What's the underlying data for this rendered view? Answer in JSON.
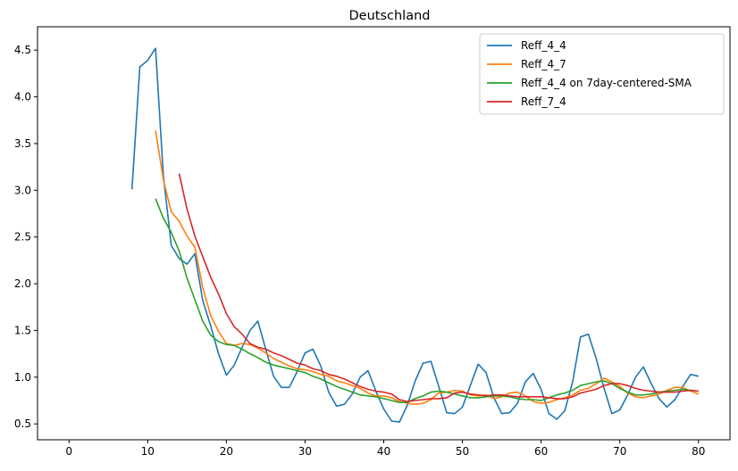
{
  "chart_data": {
    "type": "line",
    "title": "Deutschland",
    "xlabel": "",
    "ylabel": "",
    "xlim": [
      -4,
      84
    ],
    "ylim": [
      0.33,
      4.75
    ],
    "xticks": [
      0,
      10,
      20,
      30,
      40,
      50,
      60,
      70,
      80
    ],
    "yticks": [
      0.5,
      1.0,
      1.5,
      2.0,
      2.5,
      3.0,
      3.5,
      4.0,
      4.5
    ],
    "grid": false,
    "legend_position": "top-right",
    "series": [
      {
        "name": "Reff_4_4",
        "color": "#1f77b4",
        "x": [
          8,
          9,
          10,
          11,
          12,
          13,
          14,
          15,
          16,
          17,
          18,
          19,
          20,
          21,
          22,
          23,
          24,
          25,
          26,
          27,
          28,
          29,
          30,
          31,
          32,
          33,
          34,
          35,
          36,
          37,
          38,
          39,
          40,
          41,
          42,
          43,
          44,
          45,
          46,
          47,
          48,
          49,
          50,
          51,
          52,
          53,
          54,
          55,
          56,
          57,
          58,
          59,
          60,
          61,
          62,
          63,
          64,
          65,
          66,
          67,
          68,
          69,
          70,
          71,
          72,
          73,
          74,
          75,
          76,
          77,
          78,
          79,
          80
        ],
        "values": [
          3.01,
          4.32,
          4.39,
          4.52,
          3.15,
          2.41,
          2.27,
          2.21,
          2.32,
          1.82,
          1.55,
          1.25,
          1.02,
          1.13,
          1.32,
          1.5,
          1.6,
          1.3,
          1.01,
          0.89,
          0.89,
          1.06,
          1.26,
          1.3,
          1.12,
          0.84,
          0.69,
          0.71,
          0.82,
          1.0,
          1.07,
          0.85,
          0.66,
          0.53,
          0.52,
          0.7,
          0.96,
          1.15,
          1.17,
          0.9,
          0.62,
          0.61,
          0.68,
          0.91,
          1.14,
          1.05,
          0.78,
          0.61,
          0.62,
          0.72,
          0.95,
          1.04,
          0.87,
          0.61,
          0.55,
          0.64,
          0.95,
          1.43,
          1.46,
          1.2,
          0.88,
          0.61,
          0.65,
          0.81,
          1.0,
          1.11,
          0.93,
          0.77,
          0.68,
          0.76,
          0.9,
          1.03,
          1.01
        ]
      },
      {
        "name": "Reff_4_7",
        "color": "#ff7f0e",
        "x": [
          11,
          12,
          13,
          14,
          15,
          16,
          17,
          18,
          19,
          20,
          21,
          22,
          23,
          24,
          25,
          26,
          27,
          28,
          29,
          30,
          31,
          32,
          33,
          34,
          35,
          36,
          37,
          38,
          39,
          40,
          41,
          42,
          43,
          44,
          45,
          46,
          47,
          48,
          49,
          50,
          51,
          52,
          53,
          54,
          55,
          56,
          57,
          58,
          59,
          60,
          61,
          62,
          63,
          64,
          65,
          66,
          67,
          68,
          69,
          70,
          71,
          72,
          73,
          74,
          75,
          76,
          77,
          78,
          79,
          80
        ],
        "values": [
          3.64,
          3.11,
          2.77,
          2.67,
          2.51,
          2.39,
          1.96,
          1.66,
          1.49,
          1.36,
          1.34,
          1.36,
          1.35,
          1.31,
          1.26,
          1.2,
          1.16,
          1.12,
          1.09,
          1.08,
          1.06,
          1.03,
          1.01,
          0.96,
          0.94,
          0.91,
          0.88,
          0.83,
          0.8,
          0.8,
          0.78,
          0.74,
          0.72,
          0.71,
          0.72,
          0.76,
          0.83,
          0.84,
          0.86,
          0.85,
          0.81,
          0.8,
          0.81,
          0.77,
          0.79,
          0.83,
          0.84,
          0.8,
          0.74,
          0.72,
          0.73,
          0.76,
          0.78,
          0.81,
          0.86,
          0.88,
          0.93,
          0.99,
          0.95,
          0.9,
          0.83,
          0.79,
          0.78,
          0.8,
          0.82,
          0.86,
          0.89,
          0.89,
          0.85,
          0.82
        ]
      },
      {
        "name": "Reff_4_4 on 7day-centered-SMA",
        "color": "#2ca02c",
        "x": [
          11,
          12,
          13,
          14,
          15,
          16,
          17,
          18,
          19,
          20,
          21,
          22,
          23,
          24,
          25,
          26,
          27,
          28,
          29,
          30,
          31,
          32,
          33,
          34,
          35,
          36,
          37,
          38,
          39,
          40,
          41,
          42,
          43,
          44,
          45,
          46,
          47,
          48,
          49,
          50,
          51,
          52,
          53,
          54,
          55,
          56,
          57,
          58,
          59,
          60,
          61,
          62,
          63,
          64,
          65,
          66,
          67,
          68,
          69,
          70,
          71,
          72,
          73,
          74,
          75,
          76,
          77,
          78,
          79,
          80
        ],
        "values": [
          2.91,
          2.7,
          2.55,
          2.35,
          2.06,
          1.83,
          1.6,
          1.45,
          1.38,
          1.35,
          1.34,
          1.3,
          1.25,
          1.21,
          1.16,
          1.13,
          1.11,
          1.09,
          1.07,
          1.05,
          1.01,
          0.98,
          0.94,
          0.9,
          0.87,
          0.84,
          0.81,
          0.8,
          0.79,
          0.77,
          0.75,
          0.73,
          0.73,
          0.77,
          0.8,
          0.84,
          0.85,
          0.84,
          0.82,
          0.8,
          0.78,
          0.78,
          0.79,
          0.8,
          0.8,
          0.79,
          0.77,
          0.76,
          0.76,
          0.75,
          0.78,
          0.81,
          0.83,
          0.86,
          0.91,
          0.93,
          0.95,
          0.96,
          0.93,
          0.88,
          0.84,
          0.81,
          0.81,
          0.82,
          0.84,
          0.85,
          0.86,
          0.87,
          0.86,
          0.85
        ]
      },
      {
        "name": "Reff_7_4",
        "color": "#d62728",
        "x": [
          14,
          15,
          16,
          17,
          18,
          19,
          20,
          21,
          22,
          23,
          24,
          25,
          26,
          27,
          28,
          29,
          30,
          31,
          32,
          33,
          34,
          35,
          36,
          37,
          38,
          39,
          40,
          41,
          42,
          43,
          44,
          45,
          46,
          47,
          48,
          49,
          50,
          51,
          52,
          53,
          54,
          55,
          56,
          57,
          58,
          59,
          60,
          61,
          62,
          63,
          64,
          65,
          66,
          67,
          68,
          69,
          70,
          71,
          72,
          73,
          74,
          75,
          76,
          77,
          78,
          79,
          80
        ],
        "values": [
          3.18,
          2.8,
          2.51,
          2.29,
          2.07,
          1.89,
          1.68,
          1.54,
          1.46,
          1.36,
          1.32,
          1.3,
          1.26,
          1.23,
          1.19,
          1.15,
          1.13,
          1.09,
          1.07,
          1.03,
          1.01,
          0.98,
          0.94,
          0.9,
          0.87,
          0.85,
          0.84,
          0.82,
          0.76,
          0.74,
          0.75,
          0.76,
          0.77,
          0.77,
          0.78,
          0.83,
          0.84,
          0.82,
          0.81,
          0.8,
          0.81,
          0.81,
          0.8,
          0.79,
          0.79,
          0.79,
          0.79,
          0.78,
          0.77,
          0.77,
          0.79,
          0.83,
          0.85,
          0.87,
          0.91,
          0.93,
          0.93,
          0.91,
          0.88,
          0.86,
          0.85,
          0.84,
          0.84,
          0.84,
          0.85,
          0.86,
          0.85
        ]
      }
    ]
  }
}
